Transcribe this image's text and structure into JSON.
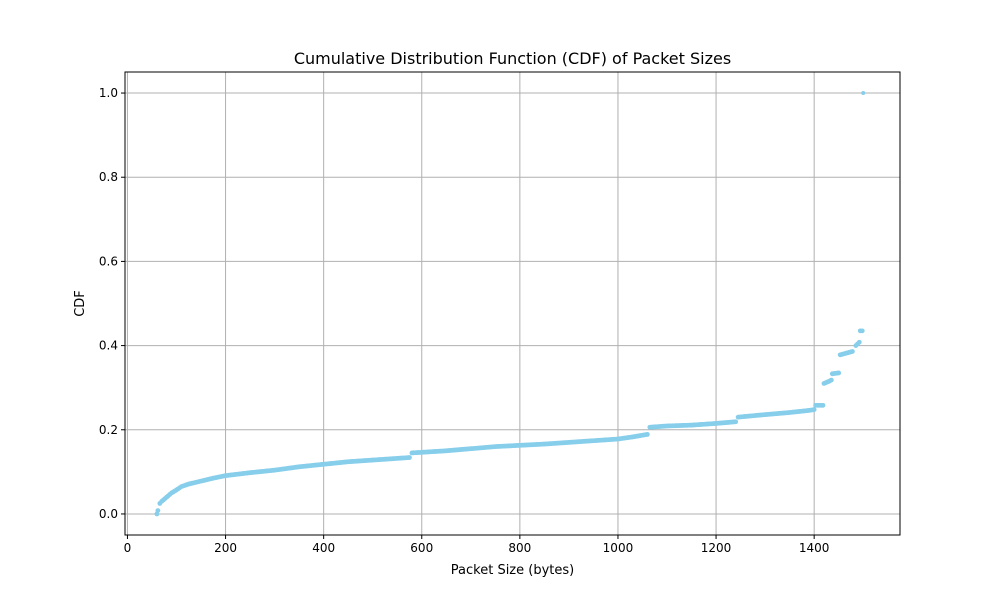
{
  "chart_data": {
    "type": "scatter",
    "title": "Cumulative Distribution Function (CDF) of Packet Sizes",
    "xlabel": "Packet Size (bytes)",
    "ylabel": "CDF",
    "xlim": [
      -5,
      1575
    ],
    "ylim": [
      -0.05,
      1.05
    ],
    "x_ticks": [
      0,
      200,
      400,
      600,
      800,
      1000,
      1200,
      1400
    ],
    "y_ticks": [
      0.0,
      0.2,
      0.4,
      0.6,
      0.8,
      1.0
    ],
    "x_tick_labels": [
      "0",
      "200",
      "400",
      "600",
      "800",
      "1000",
      "1200",
      "1400"
    ],
    "y_tick_labels": [
      "0.0",
      "0.2",
      "0.4",
      "0.6",
      "0.8",
      "1.0"
    ],
    "grid": true,
    "colors": {
      "marker": "#87ceeb",
      "grid": "#b0b0b0",
      "axis": "#000000"
    },
    "curve_segments": [
      {
        "x": [
          60,
          62,
          66,
          70,
          80,
          90,
          100,
          110,
          125,
          150,
          175,
          200,
          250,
          300,
          350,
          400,
          450,
          500,
          550,
          575
        ],
        "y": [
          0.0,
          0.008,
          0.025,
          0.03,
          0.04,
          0.05,
          0.057,
          0.065,
          0.071,
          0.078,
          0.085,
          0.091,
          0.098,
          0.104,
          0.112,
          0.118,
          0.124,
          0.128,
          0.132,
          0.134
        ]
      },
      {
        "x": [
          580,
          650,
          700,
          750,
          800,
          850,
          900,
          950,
          1000,
          1030,
          1060
        ],
        "y": [
          0.145,
          0.15,
          0.155,
          0.16,
          0.163,
          0.166,
          0.17,
          0.174,
          0.178,
          0.183,
          0.189
        ]
      },
      {
        "x": [
          1065,
          1100,
          1150,
          1200,
          1240
        ],
        "y": [
          0.206,
          0.209,
          0.211,
          0.215,
          0.219
        ]
      },
      {
        "x": [
          1245,
          1300,
          1350,
          1390,
          1400
        ],
        "y": [
          0.23,
          0.236,
          0.241,
          0.246,
          0.248
        ]
      },
      {
        "x": [
          1403,
          1418
        ],
        "y": [
          0.258,
          0.258
        ]
      },
      {
        "x": [
          1420,
          1430,
          1435
        ],
        "y": [
          0.31,
          0.315,
          0.318
        ]
      },
      {
        "x": [
          1437,
          1450
        ],
        "y": [
          0.333,
          0.335
        ]
      },
      {
        "x": [
          1453,
          1478
        ],
        "y": [
          0.378,
          0.386
        ]
      },
      {
        "x": [
          1485,
          1492
        ],
        "y": [
          0.4,
          0.408
        ]
      },
      {
        "x": [
          1494,
          1498
        ],
        "y": [
          0.435,
          0.435
        ]
      }
    ],
    "isolated_points": [
      {
        "x": 1500,
        "y": 1.0
      }
    ]
  }
}
